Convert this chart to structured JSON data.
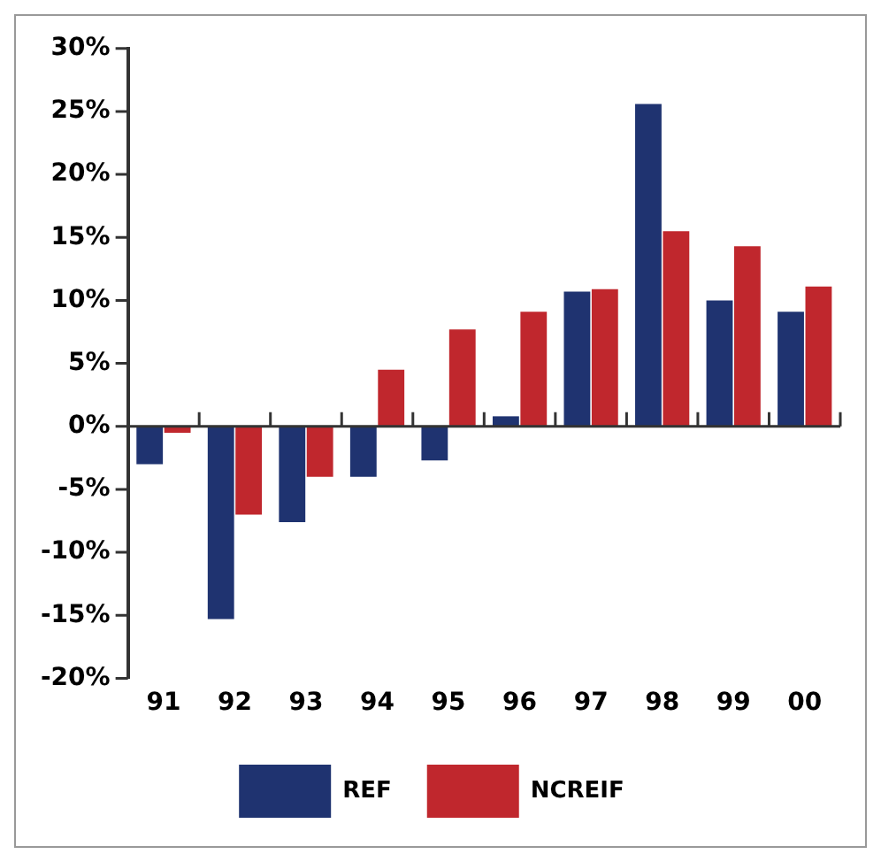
{
  "chart_data": {
    "type": "bar",
    "categories": [
      "91",
      "92",
      "93",
      "94",
      "95",
      "96",
      "97",
      "98",
      "99",
      "00"
    ],
    "series": [
      {
        "name": "REF",
        "color": "#1f3370",
        "values": [
          -3.0,
          -15.3,
          -7.6,
          -4.0,
          -2.7,
          0.8,
          10.7,
          25.6,
          10.0,
          9.1
        ]
      },
      {
        "name": "NCREIF",
        "color": "#c0272d",
        "values": [
          -0.5,
          -7.0,
          -4.0,
          4.5,
          7.7,
          9.1,
          10.9,
          15.5,
          14.3,
          11.1
        ]
      }
    ],
    "ylim": [
      -20,
      30
    ],
    "yticks": [
      {
        "value": -20,
        "label": "-20%"
      },
      {
        "value": -15,
        "label": "-15%"
      },
      {
        "value": -10,
        "label": "-10%"
      },
      {
        "value": -5,
        "label": "-5%"
      },
      {
        "value": 0,
        "label": "0%"
      },
      {
        "value": 5,
        "label": "5%"
      },
      {
        "value": 10,
        "label": "10%"
      },
      {
        "value": 15,
        "label": "15%"
      },
      {
        "value": 20,
        "label": "20%"
      },
      {
        "value": 25,
        "label": "25%"
      },
      {
        "value": 30,
        "label": "30%"
      }
    ],
    "legend": "bottom"
  }
}
